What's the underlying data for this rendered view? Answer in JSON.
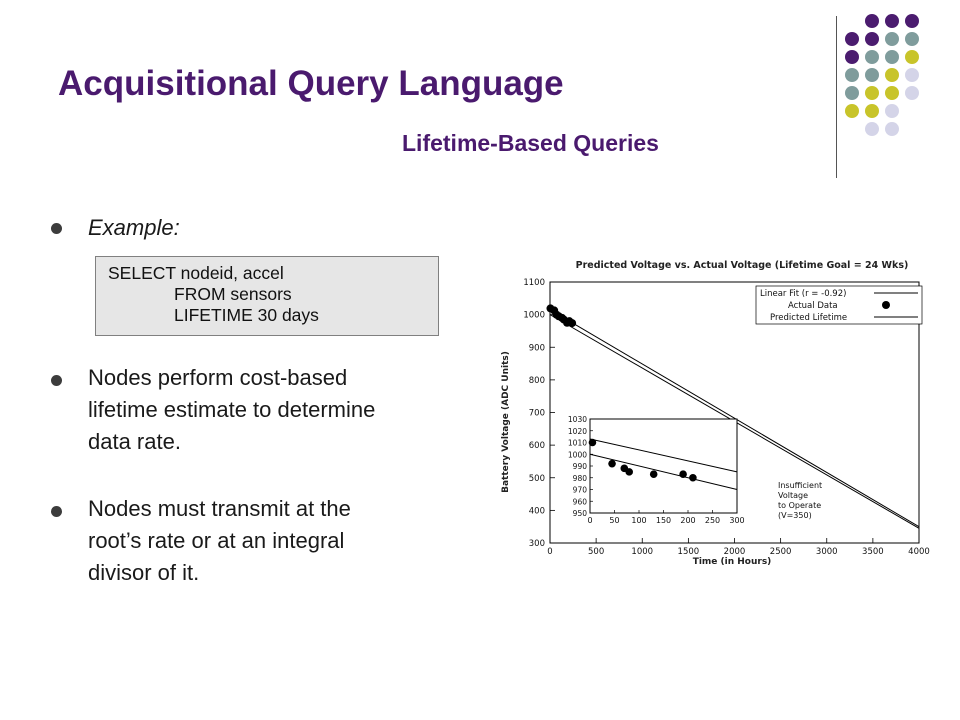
{
  "slide": {
    "title": "Acquisitional Query Language",
    "subtitle": "Lifetime-Based Queries"
  },
  "bullets": {
    "example_label": "Example:",
    "code_lines": [
      "SELECT nodeid, accel",
      "FROM sensors",
      "LIFETIME 30 days"
    ],
    "point1_lines": [
      "Nodes perform cost-based",
      "lifetime estimate to determine",
      "data rate."
    ],
    "point2_lines": [
      "Nodes must transmit at the",
      "root’s rate or at an integral",
      "divisor of it."
    ]
  },
  "decor": {
    "dot_colors": {
      "purple": "#4b1c6f",
      "teal": "#7f9c9c",
      "olive": "#c8c42a",
      "lavender": "#d4d4e8"
    }
  },
  "chart_data": {
    "type": "scatter",
    "title": "Predicted Voltage vs. Actual Voltage (Lifetime Goal = 24 Wks)",
    "xlabel": "Time (in Hours)",
    "ylabel": "Battery Voltage (ADC Units)",
    "xlim": [
      0,
      4000
    ],
    "ylim": [
      300,
      1100
    ],
    "xticks": [
      0,
      500,
      1000,
      1500,
      2000,
      2500,
      3000,
      3500,
      4000
    ],
    "yticks": [
      300,
      400,
      500,
      600,
      700,
      800,
      900,
      1000,
      1100
    ],
    "legend": {
      "position": "top-right",
      "entries": [
        "Linear Fit (r = -0.92)",
        "Actual Data",
        "Predicted Lifetime"
      ]
    },
    "series": [
      {
        "name": "Actual Data",
        "kind": "points",
        "x": [
          5,
          45,
          70,
          95,
          130,
          150,
          185,
          210,
          240
        ],
        "y": [
          1019,
          1013,
          1000,
          995,
          990,
          985,
          975,
          980,
          974
        ]
      },
      {
        "name": "Linear Fit (r = -0.92)",
        "kind": "line",
        "x": [
          0,
          4000
        ],
        "y": [
          1015,
          350
        ]
      },
      {
        "name": "Predicted Lifetime",
        "kind": "line",
        "x": [
          0,
          4000
        ],
        "y": [
          1000,
          345
        ]
      }
    ],
    "annotation": [
      "Insufficient",
      "Voltage",
      "to Operate",
      "(V=350)"
    ],
    "inset": {
      "xlim": [
        0,
        300
      ],
      "ylim": [
        950,
        1030
      ],
      "xticks": [
        0,
        50,
        100,
        150,
        200,
        250,
        300
      ],
      "yticks": [
        950,
        960,
        970,
        980,
        990,
        1000,
        1010,
        1020,
        1030
      ],
      "points": {
        "x": [
          5,
          45,
          70,
          80,
          130,
          190,
          210
        ],
        "y": [
          1010,
          992,
          988,
          985,
          983,
          983,
          980
        ]
      },
      "lines": [
        {
          "x": [
            0,
            300
          ],
          "y": [
            1013,
            985
          ]
        },
        {
          "x": [
            0,
            300
          ],
          "y": [
            1000,
            970
          ]
        }
      ]
    }
  }
}
